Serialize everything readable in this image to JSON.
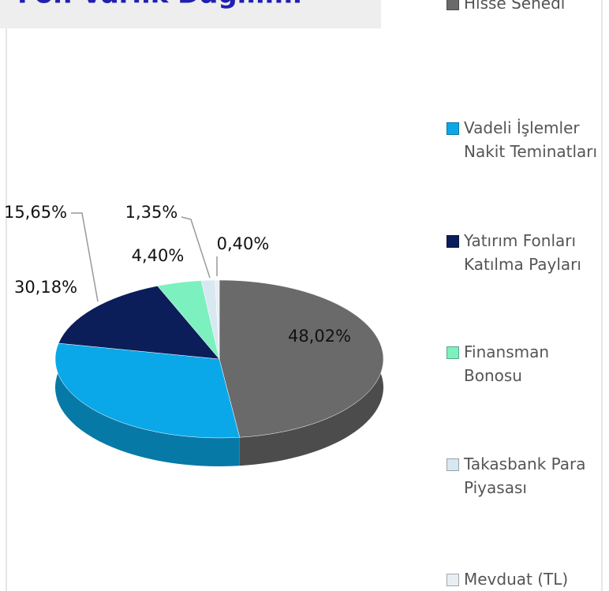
{
  "chart_data": {
    "type": "pie",
    "title": "Fon Varlık Dağılımı",
    "categories": [
      "Hisse Senedi",
      "Vadeli İşlemler Nakit Teminatları",
      "Yatırım Fonları Katılma Payları",
      "Finansman Bonosu",
      "Takasbank Para Piyasası",
      "Mevduat (TL)"
    ],
    "values": [
      48.02,
      30.18,
      15.65,
      4.4,
      1.35,
      0.4
    ],
    "value_labels": [
      "48,02%",
      "30,18%",
      "15,65%",
      "4,40%",
      "1,35%",
      "0,40%"
    ],
    "colors": [
      "#6a6a6a",
      "#0aa8e8",
      "#0b1e5a",
      "#7df0c0",
      "#d8e8f0",
      "#e8eef4"
    ],
    "legend": "right"
  }
}
